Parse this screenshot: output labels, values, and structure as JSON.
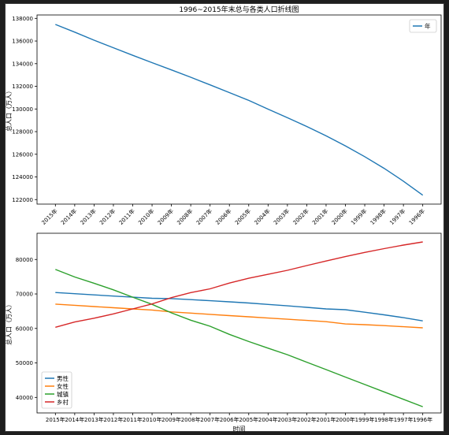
{
  "chart_data": [
    {
      "type": "line",
      "title": "1996~2015年末总与各类人口折线图",
      "xlabel": "",
      "ylabel": "总人口（万人）",
      "categories": [
        "2015年",
        "2014年",
        "2013年",
        "2012年",
        "2011年",
        "2010年",
        "2009年",
        "2008年",
        "2007年",
        "2006年",
        "2005年",
        "2004年",
        "2003年",
        "2002年",
        "2001年",
        "2000年",
        "1999年",
        "1998年",
        "1997年",
        "1996年"
      ],
      "ylim": [
        121600,
        138300
      ],
      "yticks": [
        122000,
        124000,
        126000,
        128000,
        130000,
        132000,
        134000,
        136000,
        138000
      ],
      "legend_position": "upper right",
      "series": [
        {
          "name": "年",
          "color": "#1f77b4",
          "values": [
            137462,
            136782,
            136072,
            135404,
            134735,
            134091,
            133450,
            132802,
            132129,
            131448,
            130756,
            129988,
            129227,
            128453,
            127627,
            126743,
            125786,
            124761,
            123626,
            122389
          ]
        }
      ]
    },
    {
      "type": "line",
      "title": "",
      "xlabel": "时间",
      "ylabel": "总人口（万人）",
      "categories": [
        "2015年",
        "2014年",
        "2013年",
        "2012年",
        "2011年",
        "2010年",
        "2009年",
        "2008年",
        "2007年",
        "2006年",
        "2005年",
        "2004年",
        "2003年",
        "2002年",
        "2001年",
        "2000年",
        "1999年",
        "1998年",
        "1997年",
        "1996年"
      ],
      "ylim": [
        35500,
        87600
      ],
      "yticks": [
        40000,
        50000,
        60000,
        70000,
        80000
      ],
      "legend_position": "lower left",
      "series": [
        {
          "name": "男性",
          "color": "#1f77b4",
          "values": [
            70414,
            70079,
            69728,
            69395,
            69068,
            68748,
            68647,
            68357,
            68048,
            67728,
            67375,
            66976,
            66556,
            66115,
            65672,
            65437,
            64692,
            63940,
            63131,
            62200
          ]
        },
        {
          "name": "女性",
          "color": "#ff7f0e",
          "values": [
            67048,
            66703,
            66344,
            66009,
            65667,
            65343,
            64803,
            64445,
            64081,
            63720,
            63381,
            63012,
            62671,
            62338,
            61955,
            61306,
            61094,
            60821,
            60495,
            60189
          ]
        },
        {
          "name": "城镇",
          "color": "#2ca02c",
          "values": [
            77116,
            74916,
            73111,
            71182,
            69079,
            66978,
            64512,
            62403,
            60633,
            58288,
            56212,
            54283,
            52376,
            50212,
            48064,
            45906,
            43748,
            41608,
            39449,
            37304
          ]
        },
        {
          "name": "乡村",
          "color": "#d62728",
          "values": [
            60346,
            61866,
            62961,
            64222,
            65656,
            67113,
            68938,
            70399,
            71496,
            73160,
            74544,
            75705,
            76851,
            78241,
            79563,
            80837,
            82038,
            83153,
            84177,
            85085
          ]
        }
      ]
    }
  ]
}
